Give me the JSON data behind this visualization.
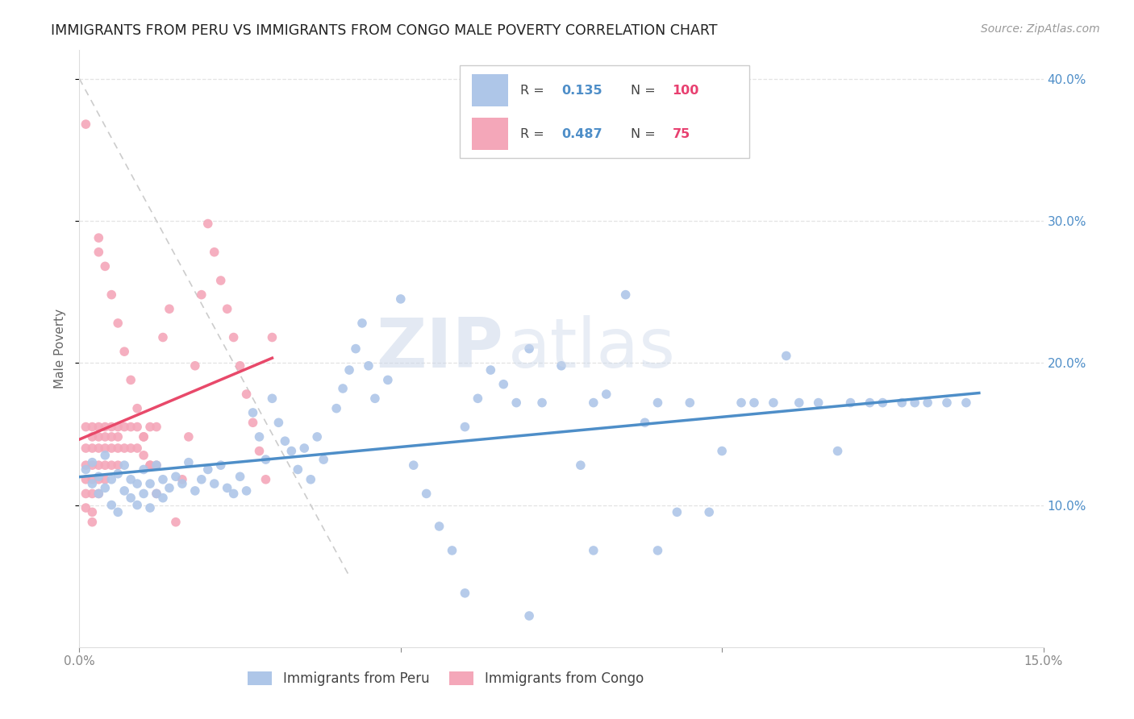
{
  "title": "IMMIGRANTS FROM PERU VS IMMIGRANTS FROM CONGO MALE POVERTY CORRELATION CHART",
  "source": "Source: ZipAtlas.com",
  "ylabel": "Male Poverty",
  "xlim": [
    0,
    0.15
  ],
  "ylim": [
    0,
    0.42
  ],
  "xticks": [
    0.0,
    0.05,
    0.1,
    0.15
  ],
  "xtick_labels": [
    "0.0%",
    "",
    "",
    "15.0%"
  ],
  "ytick_vals": [
    0.1,
    0.2,
    0.3,
    0.4
  ],
  "ytick_labels": [
    "10.0%",
    "20.0%",
    "30.0%",
    "40.0%"
  ],
  "peru_color": "#aec6e8",
  "peru_color_dark": "#4e8ec8",
  "congo_color": "#f4a7b9",
  "congo_color_dark": "#e8496a",
  "peru_R": 0.135,
  "peru_N": 100,
  "congo_R": 0.487,
  "congo_N": 75,
  "watermark_zip": "ZIP",
  "watermark_atlas": "atlas",
  "legend_label_peru": "Immigrants from Peru",
  "legend_label_congo": "Immigrants from Congo",
  "peru_x": [
    0.001,
    0.002,
    0.002,
    0.003,
    0.003,
    0.004,
    0.004,
    0.005,
    0.005,
    0.006,
    0.006,
    0.007,
    0.007,
    0.008,
    0.008,
    0.009,
    0.009,
    0.01,
    0.01,
    0.011,
    0.011,
    0.012,
    0.012,
    0.013,
    0.013,
    0.014,
    0.015,
    0.016,
    0.017,
    0.018,
    0.019,
    0.02,
    0.021,
    0.022,
    0.023,
    0.024,
    0.025,
    0.026,
    0.027,
    0.028,
    0.029,
    0.03,
    0.031,
    0.032,
    0.033,
    0.034,
    0.035,
    0.036,
    0.037,
    0.038,
    0.04,
    0.041,
    0.042,
    0.043,
    0.044,
    0.045,
    0.046,
    0.048,
    0.05,
    0.052,
    0.054,
    0.056,
    0.058,
    0.06,
    0.062,
    0.064,
    0.066,
    0.068,
    0.07,
    0.072,
    0.075,
    0.078,
    0.08,
    0.082,
    0.085,
    0.088,
    0.09,
    0.093,
    0.095,
    0.098,
    0.1,
    0.103,
    0.105,
    0.108,
    0.11,
    0.112,
    0.115,
    0.118,
    0.12,
    0.123,
    0.125,
    0.128,
    0.13,
    0.132,
    0.135,
    0.138,
    0.06,
    0.07,
    0.08,
    0.09
  ],
  "peru_y": [
    0.125,
    0.115,
    0.13,
    0.108,
    0.12,
    0.112,
    0.135,
    0.118,
    0.1,
    0.122,
    0.095,
    0.11,
    0.128,
    0.105,
    0.118,
    0.1,
    0.115,
    0.108,
    0.125,
    0.098,
    0.115,
    0.108,
    0.128,
    0.105,
    0.118,
    0.112,
    0.12,
    0.115,
    0.13,
    0.11,
    0.118,
    0.125,
    0.115,
    0.128,
    0.112,
    0.108,
    0.12,
    0.11,
    0.165,
    0.148,
    0.132,
    0.175,
    0.158,
    0.145,
    0.138,
    0.125,
    0.14,
    0.118,
    0.148,
    0.132,
    0.168,
    0.182,
    0.195,
    0.21,
    0.228,
    0.198,
    0.175,
    0.188,
    0.245,
    0.128,
    0.108,
    0.085,
    0.068,
    0.155,
    0.175,
    0.195,
    0.185,
    0.172,
    0.21,
    0.172,
    0.198,
    0.128,
    0.172,
    0.178,
    0.248,
    0.158,
    0.172,
    0.095,
    0.172,
    0.095,
    0.138,
    0.172,
    0.172,
    0.172,
    0.205,
    0.172,
    0.172,
    0.138,
    0.172,
    0.172,
    0.172,
    0.172,
    0.172,
    0.172,
    0.172,
    0.172,
    0.038,
    0.022,
    0.068,
    0.068
  ],
  "congo_x": [
    0.001,
    0.001,
    0.001,
    0.001,
    0.001,
    0.001,
    0.002,
    0.002,
    0.002,
    0.002,
    0.002,
    0.002,
    0.003,
    0.003,
    0.003,
    0.003,
    0.003,
    0.004,
    0.004,
    0.004,
    0.004,
    0.005,
    0.005,
    0.005,
    0.006,
    0.006,
    0.006,
    0.007,
    0.007,
    0.008,
    0.008,
    0.009,
    0.009,
    0.01,
    0.01,
    0.011,
    0.011,
    0.012,
    0.012,
    0.013,
    0.014,
    0.015,
    0.016,
    0.017,
    0.018,
    0.019,
    0.02,
    0.021,
    0.022,
    0.023,
    0.024,
    0.025,
    0.026,
    0.027,
    0.028,
    0.029,
    0.03,
    0.001,
    0.002,
    0.003,
    0.003,
    0.004,
    0.005,
    0.006,
    0.007,
    0.008,
    0.009,
    0.01,
    0.011,
    0.012,
    0.002,
    0.003,
    0.004,
    0.005,
    0.006
  ],
  "congo_y": [
    0.155,
    0.14,
    0.128,
    0.118,
    0.108,
    0.098,
    0.155,
    0.14,
    0.128,
    0.118,
    0.108,
    0.095,
    0.155,
    0.14,
    0.128,
    0.118,
    0.108,
    0.155,
    0.14,
    0.128,
    0.118,
    0.155,
    0.14,
    0.128,
    0.155,
    0.14,
    0.128,
    0.155,
    0.14,
    0.155,
    0.14,
    0.155,
    0.14,
    0.148,
    0.135,
    0.155,
    0.128,
    0.155,
    0.128,
    0.218,
    0.238,
    0.088,
    0.118,
    0.148,
    0.198,
    0.248,
    0.298,
    0.278,
    0.258,
    0.238,
    0.218,
    0.198,
    0.178,
    0.158,
    0.138,
    0.118,
    0.218,
    0.368,
    0.088,
    0.288,
    0.278,
    0.268,
    0.248,
    0.228,
    0.208,
    0.188,
    0.168,
    0.148,
    0.128,
    0.108,
    0.148,
    0.148,
    0.148,
    0.148,
    0.148
  ]
}
